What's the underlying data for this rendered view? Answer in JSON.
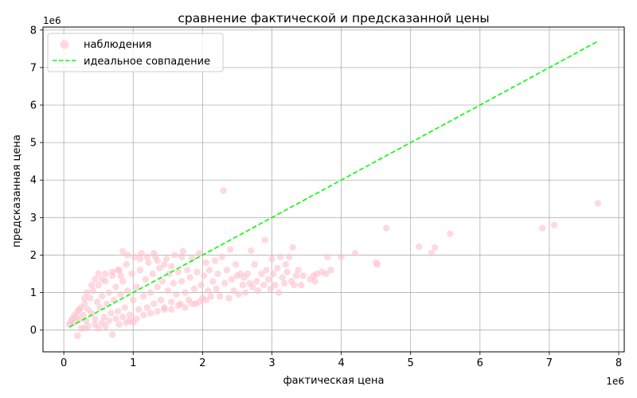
{
  "chart_data": {
    "type": "scatter",
    "title": "сравнение фактической и предсказанной цены",
    "xlabel": "фактическая цена",
    "ylabel": "предсказанная цена",
    "x_offset_label": "1e6",
    "y_offset_label": "1e6",
    "xlim": [
      -0.3,
      8.08
    ],
    "ylim": [
      -0.58,
      8.08
    ],
    "x_ticks": [
      0,
      1,
      2,
      3,
      4,
      5,
      6,
      7,
      8
    ],
    "y_ticks": [
      0,
      1,
      2,
      3,
      4,
      5,
      6,
      7,
      8
    ],
    "grid": true,
    "legend_position": "top-left",
    "colors": {
      "observations": "#ffc0cb",
      "ideal": "#00ff00",
      "grid": "#b0b0b0"
    },
    "series": [
      {
        "name": "наблюдения",
        "kind": "scatter",
        "points": [
          [
            0.08,
            0.15
          ],
          [
            0.1,
            0.22
          ],
          [
            0.12,
            0.3
          ],
          [
            0.15,
            0.2
          ],
          [
            0.18,
            0.35
          ],
          [
            0.2,
            0.5
          ],
          [
            0.22,
            0.28
          ],
          [
            0.25,
            0.6
          ],
          [
            0.28,
            0.4
          ],
          [
            0.3,
            0.7
          ],
          [
            0.32,
            0.25
          ],
          [
            0.35,
            0.55
          ],
          [
            0.38,
            0.85
          ],
          [
            0.4,
            0.45
          ],
          [
            0.42,
            1.05
          ],
          [
            0.45,
            0.3
          ],
          [
            0.48,
            0.75
          ],
          [
            0.5,
            1.2
          ],
          [
            0.52,
            0.6
          ],
          [
            0.55,
            0.9
          ],
          [
            0.58,
            0.35
          ],
          [
            0.6,
            1.3
          ],
          [
            0.62,
            0.7
          ],
          [
            0.65,
            1.0
          ],
          [
            0.68,
            0.45
          ],
          [
            0.7,
            1.45
          ],
          [
            0.72,
            0.8
          ],
          [
            0.75,
            1.15
          ],
          [
            0.78,
            0.5
          ],
          [
            0.8,
            1.6
          ],
          [
            0.82,
            0.95
          ],
          [
            0.85,
            1.3
          ],
          [
            0.88,
            0.6
          ],
          [
            0.9,
            1.75
          ],
          [
            0.92,
            1.05
          ],
          [
            0.95,
            0.4
          ],
          [
            0.98,
            1.5
          ],
          [
            1.0,
            0.8
          ],
          [
            1.02,
            1.95
          ],
          [
            1.05,
            1.15
          ],
          [
            1.08,
            0.55
          ],
          [
            1.1,
            1.6
          ],
          [
            1.12,
            2.05
          ],
          [
            1.15,
            0.9
          ],
          [
            1.18,
            1.35
          ],
          [
            1.2,
            0.6
          ],
          [
            1.22,
            1.8
          ],
          [
            1.25,
            1.0
          ],
          [
            1.28,
            1.5
          ],
          [
            1.3,
            0.7
          ],
          [
            1.32,
            1.95
          ],
          [
            1.35,
            1.15
          ],
          [
            1.38,
            1.65
          ],
          [
            1.4,
            0.8
          ],
          [
            1.42,
            1.3
          ],
          [
            1.45,
            0.55
          ],
          [
            1.48,
            1.9
          ],
          [
            1.5,
            1.05
          ],
          [
            1.52,
            1.5
          ],
          [
            1.55,
            0.75
          ],
          [
            1.58,
            1.25
          ],
          [
            1.6,
            2.0
          ],
          [
            1.62,
            0.95
          ],
          [
            1.65,
            1.55
          ],
          [
            1.68,
            0.7
          ],
          [
            1.7,
            1.3
          ],
          [
            1.72,
            2.1
          ],
          [
            1.75,
            1.0
          ],
          [
            1.78,
            1.6
          ],
          [
            1.8,
            0.8
          ],
          [
            1.82,
            1.4
          ],
          [
            1.85,
            1.9
          ],
          [
            1.88,
            1.1
          ],
          [
            1.9,
            0.7
          ],
          [
            1.92,
            1.55
          ],
          [
            1.95,
            2.05
          ],
          [
            1.98,
            1.2
          ],
          [
            2.0,
            0.85
          ],
          [
            2.02,
            1.45
          ],
          [
            2.05,
            1.8
          ],
          [
            2.08,
            1.05
          ],
          [
            2.1,
            1.6
          ],
          [
            2.12,
            0.9
          ],
          [
            2.15,
            1.3
          ],
          [
            2.18,
            1.85
          ],
          [
            2.2,
            1.1
          ],
          [
            2.22,
            1.5
          ],
          [
            2.25,
            0.9
          ],
          [
            2.28,
            1.95
          ],
          [
            2.3,
            3.72
          ],
          [
            2.32,
            1.25
          ],
          [
            2.35,
            1.6
          ],
          [
            2.38,
            0.85
          ],
          [
            2.4,
            2.15
          ],
          [
            2.42,
            1.35
          ],
          [
            2.45,
            1.05
          ],
          [
            2.48,
            1.75
          ],
          [
            2.5,
            1.45
          ],
          [
            2.52,
            0.95
          ],
          [
            2.55,
            1.5
          ],
          [
            2.58,
            1.2
          ],
          [
            2.6,
            1.4
          ],
          [
            2.62,
            1.0
          ],
          [
            2.65,
            1.5
          ],
          [
            2.68,
            1.25
          ],
          [
            2.7,
            2.12
          ],
          [
            2.72,
            1.15
          ],
          [
            2.75,
            1.75
          ],
          [
            2.78,
            1.3
          ],
          [
            2.8,
            1.05
          ],
          [
            2.85,
            1.5
          ],
          [
            2.88,
            1.2
          ],
          [
            2.9,
            2.4
          ],
          [
            2.92,
            1.6
          ],
          [
            2.95,
            1.35
          ],
          [
            2.98,
            1.1
          ],
          [
            3.0,
            1.9
          ],
          [
            3.02,
            1.5
          ],
          [
            3.05,
            1.2
          ],
          [
            3.08,
            1.65
          ],
          [
            3.1,
            1.0
          ],
          [
            3.12,
            1.95
          ],
          [
            3.15,
            1.4
          ],
          [
            3.18,
            1.25
          ],
          [
            3.2,
            1.75
          ],
          [
            3.22,
            1.55
          ],
          [
            3.25,
            1.95
          ],
          [
            3.28,
            1.3
          ],
          [
            3.3,
            2.2
          ],
          [
            3.32,
            1.2
          ],
          [
            3.35,
            1.45
          ],
          [
            3.38,
            1.6
          ],
          [
            3.42,
            1.2
          ],
          [
            3.45,
            1.45
          ],
          [
            3.55,
            1.35
          ],
          [
            3.6,
            1.45
          ],
          [
            3.62,
            1.3
          ],
          [
            3.65,
            1.5
          ],
          [
            3.72,
            1.55
          ],
          [
            3.78,
            1.5
          ],
          [
            3.8,
            1.95
          ],
          [
            3.85,
            1.6
          ],
          [
            4.0,
            1.95
          ],
          [
            4.2,
            2.05
          ],
          [
            4.5,
            1.8
          ],
          [
            4.52,
            1.75
          ],
          [
            4.65,
            2.72
          ],
          [
            5.12,
            2.22
          ],
          [
            5.3,
            2.05
          ],
          [
            5.35,
            2.2
          ],
          [
            5.57,
            2.57
          ],
          [
            6.9,
            2.72
          ],
          [
            7.07,
            2.8
          ],
          [
            7.7,
            3.38
          ],
          [
            0.2,
            -0.15
          ],
          [
            0.7,
            -0.12
          ],
          [
            0.25,
            0.05
          ],
          [
            0.35,
            0.1
          ],
          [
            0.45,
            0.15
          ],
          [
            0.55,
            0.2
          ],
          [
            0.65,
            0.25
          ],
          [
            0.75,
            0.3
          ],
          [
            0.85,
            0.35
          ],
          [
            0.95,
            0.25
          ],
          [
            1.05,
            0.3
          ],
          [
            1.15,
            0.4
          ],
          [
            1.25,
            0.45
          ],
          [
            1.35,
            0.5
          ],
          [
            1.45,
            0.6
          ],
          [
            1.55,
            0.55
          ],
          [
            1.65,
            0.65
          ],
          [
            1.75,
            0.6
          ],
          [
            1.85,
            0.7
          ],
          [
            1.95,
            0.75
          ],
          [
            2.05,
            0.8
          ],
          [
            0.3,
            0.05
          ],
          [
            0.5,
            0.05
          ],
          [
            0.6,
            0.1
          ],
          [
            0.8,
            0.15
          ],
          [
            0.9,
            0.2
          ],
          [
            1.0,
            0.2
          ],
          [
            0.15,
            0.4
          ],
          [
            0.22,
            0.55
          ],
          [
            0.3,
            0.85
          ],
          [
            0.33,
            1.0
          ],
          [
            0.4,
            1.2
          ],
          [
            0.45,
            1.35
          ],
          [
            0.5,
            1.5
          ],
          [
            0.55,
            1.35
          ],
          [
            0.6,
            1.5
          ],
          [
            0.7,
            1.55
          ],
          [
            0.78,
            1.6
          ],
          [
            0.82,
            1.45
          ],
          [
            0.85,
            2.1
          ],
          [
            0.92,
            2.0
          ],
          [
            1.1,
            1.9
          ],
          [
            1.2,
            1.95
          ],
          [
            1.3,
            2.05
          ],
          [
            1.35,
            1.85
          ],
          [
            1.45,
            1.75
          ],
          [
            1.55,
            1.7
          ],
          [
            1.7,
            1.95
          ]
        ]
      },
      {
        "name": "идеальное совпадение",
        "kind": "line",
        "style": "dashed",
        "x": [
          0.08,
          7.7
        ],
        "y": [
          0.08,
          7.7
        ]
      }
    ]
  }
}
